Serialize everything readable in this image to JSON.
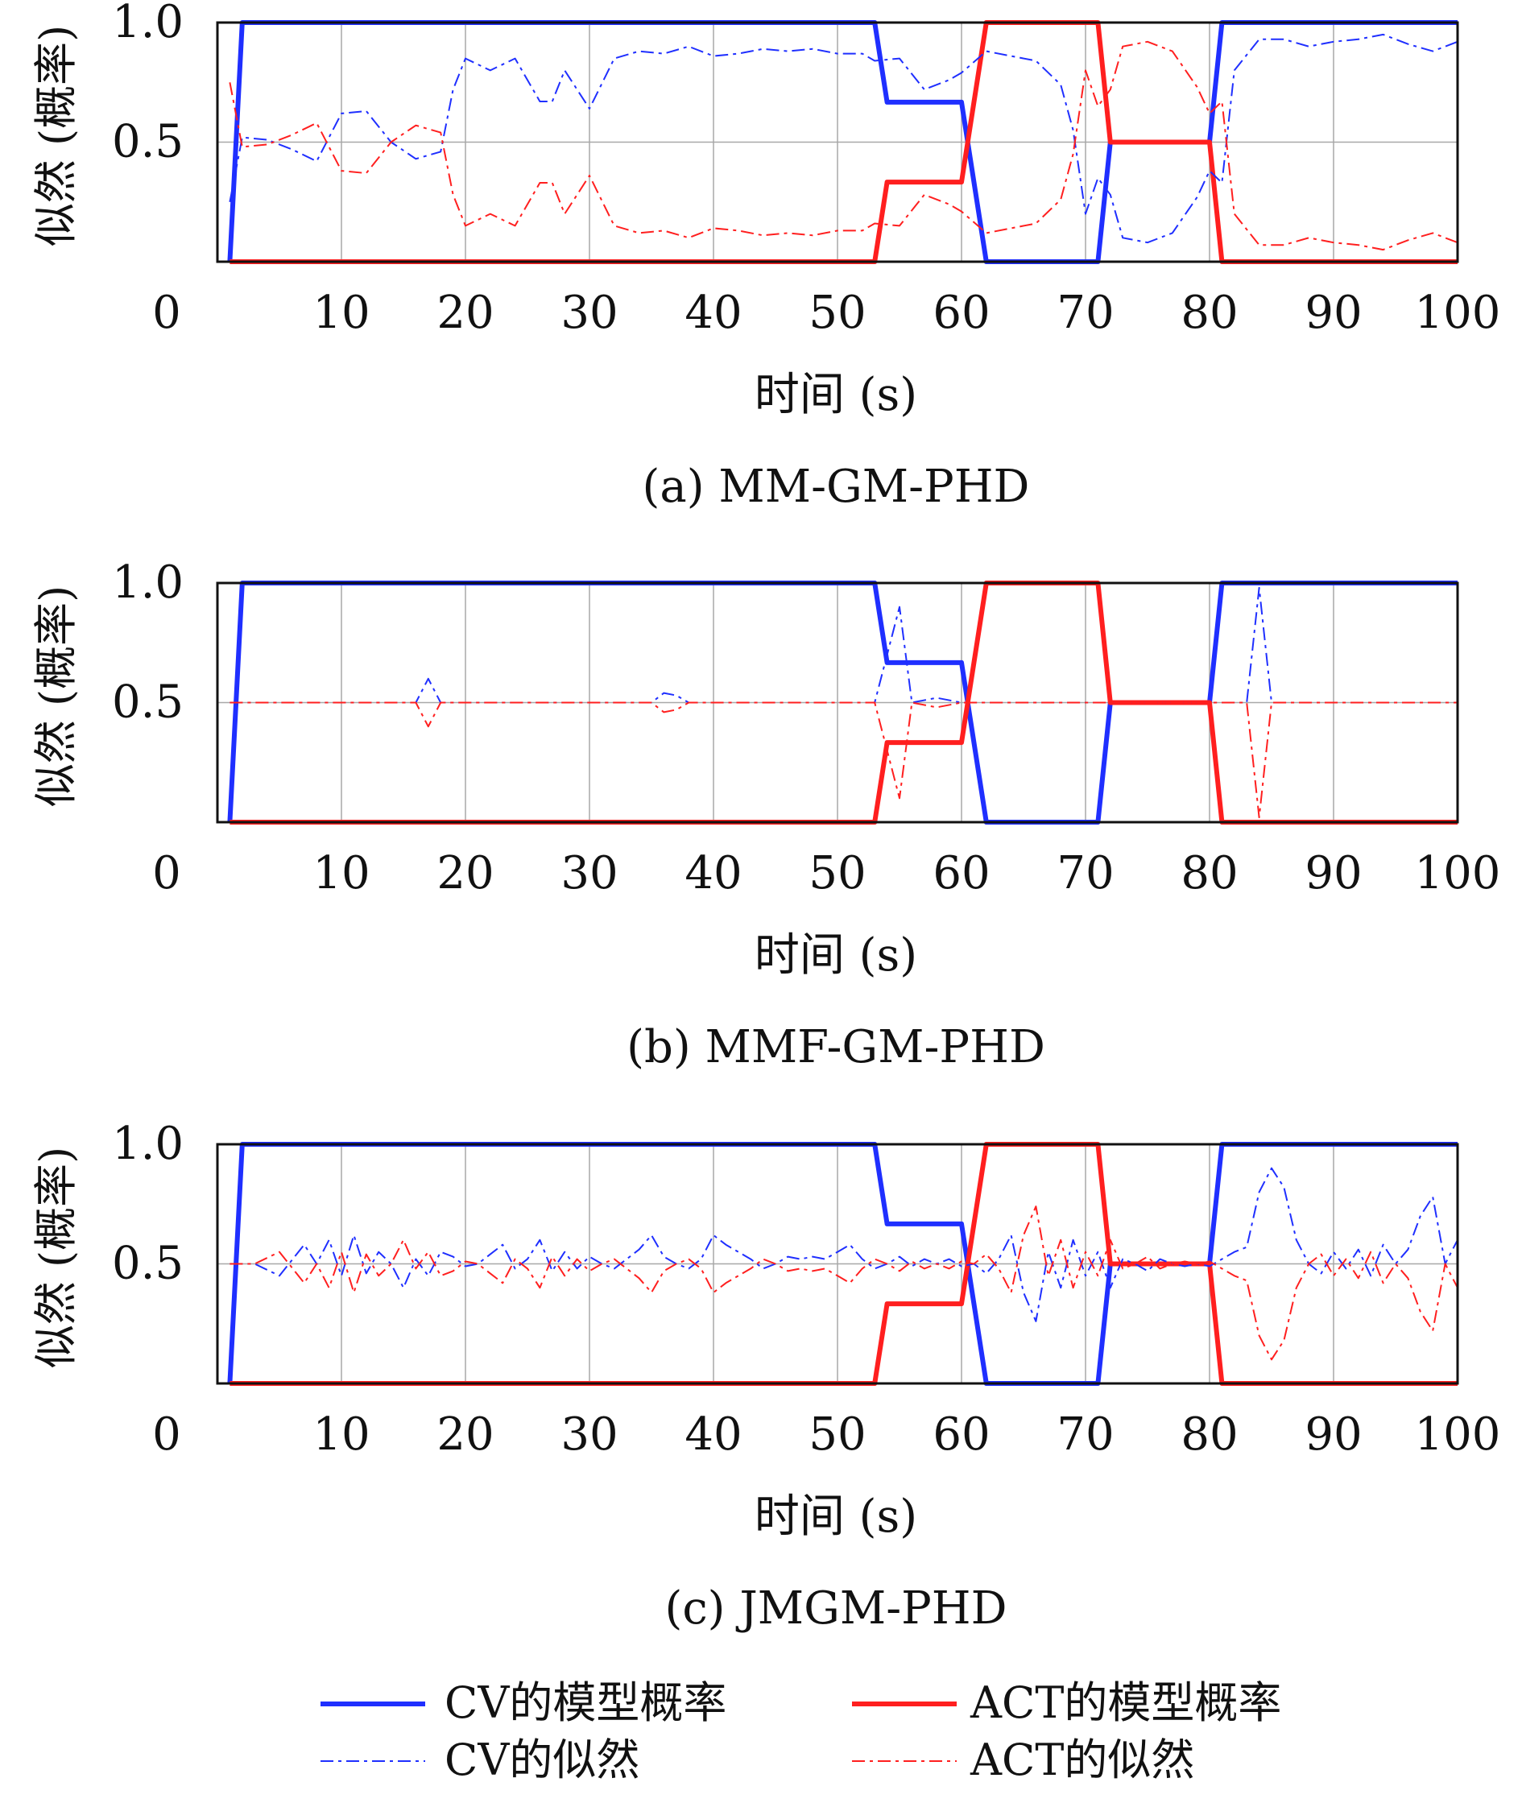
{
  "figure": {
    "legend": {
      "items": [
        {
          "label": "CV的模型概率",
          "color": "#1f2fff",
          "style": "solid"
        },
        {
          "label": "ACT的模型概率",
          "color": "#ff1f1f",
          "style": "solid"
        },
        {
          "label": "CV的似然",
          "color": "#1f2fff",
          "style": "dashdot"
        },
        {
          "label": "ACT的似然",
          "color": "#ff1f1f",
          "style": "dashdot"
        }
      ]
    }
  },
  "chart_data": [
    {
      "type": "line",
      "caption": "(a) MM-GM-PHD",
      "xlabel": "时间 (s)",
      "ylabel": "似然 (概率)",
      "xlim": [
        0,
        100
      ],
      "ylim": [
        0,
        1
      ],
      "xticks": [
        0,
        10,
        20,
        30,
        40,
        50,
        60,
        70,
        80,
        90,
        100
      ],
      "yticks": [
        {
          "v": 0.5,
          "label": "0.5"
        },
        {
          "v": 1.0,
          "label": "1.0"
        }
      ],
      "grid": true,
      "series": [
        {
          "name": "CV的模型概率",
          "color": "#1f2fff",
          "style": "solid",
          "x": [
            1,
            2,
            53,
            54,
            60,
            62,
            71,
            72,
            80,
            81,
            100
          ],
          "y": [
            0,
            1,
            1,
            0.667,
            0.667,
            0,
            0,
            0.5,
            0.5,
            1,
            1
          ]
        },
        {
          "name": "ACT的模型概率",
          "color": "#ff1f1f",
          "style": "solid",
          "x": [
            1,
            53,
            54,
            60,
            62,
            71,
            72,
            80,
            81,
            100
          ],
          "y": [
            0,
            0,
            0.333,
            0.333,
            1,
            1,
            0.5,
            0.5,
            0,
            0
          ]
        },
        {
          "name": "CV的似然",
          "color": "#1f2fff",
          "style": "dashdot",
          "x": [
            1,
            2,
            4,
            6,
            8,
            10,
            12,
            14,
            16,
            18,
            19,
            20,
            22,
            24,
            26,
            27,
            28,
            30,
            32,
            34,
            36,
            38,
            40,
            42,
            44,
            46,
            48,
            50,
            52,
            53,
            55,
            57,
            59,
            60,
            62,
            64,
            66,
            68,
            69,
            70,
            71,
            72,
            73,
            75,
            77,
            79,
            80,
            81,
            82,
            84,
            86,
            88,
            90,
            92,
            94,
            96,
            98,
            100
          ],
          "y": [
            0.25,
            0.52,
            0.51,
            0.47,
            0.42,
            0.62,
            0.63,
            0.5,
            0.43,
            0.46,
            0.72,
            0.85,
            0.8,
            0.85,
            0.67,
            0.67,
            0.8,
            0.64,
            0.85,
            0.88,
            0.87,
            0.9,
            0.86,
            0.87,
            0.89,
            0.88,
            0.89,
            0.87,
            0.87,
            0.84,
            0.85,
            0.72,
            0.76,
            0.79,
            0.88,
            0.86,
            0.84,
            0.74,
            0.55,
            0.2,
            0.35,
            0.28,
            0.1,
            0.08,
            0.12,
            0.27,
            0.38,
            0.33,
            0.8,
            0.93,
            0.93,
            0.9,
            0.92,
            0.93,
            0.95,
            0.91,
            0.88,
            0.92
          ]
        },
        {
          "name": "ACT的似然",
          "color": "#ff1f1f",
          "style": "dashdot",
          "x": [
            1,
            2,
            4,
            6,
            8,
            10,
            12,
            14,
            16,
            18,
            19,
            20,
            22,
            24,
            26,
            27,
            28,
            30,
            32,
            34,
            36,
            38,
            40,
            42,
            44,
            46,
            48,
            50,
            52,
            53,
            55,
            57,
            59,
            60,
            62,
            64,
            66,
            68,
            69,
            70,
            71,
            72,
            73,
            75,
            77,
            79,
            80,
            81,
            82,
            84,
            86,
            88,
            90,
            92,
            94,
            96,
            98,
            100
          ],
          "y": [
            0.75,
            0.48,
            0.49,
            0.53,
            0.58,
            0.38,
            0.37,
            0.5,
            0.57,
            0.54,
            0.28,
            0.15,
            0.2,
            0.15,
            0.33,
            0.33,
            0.2,
            0.36,
            0.15,
            0.12,
            0.13,
            0.1,
            0.14,
            0.13,
            0.11,
            0.12,
            0.11,
            0.13,
            0.13,
            0.16,
            0.15,
            0.28,
            0.24,
            0.21,
            0.12,
            0.14,
            0.16,
            0.26,
            0.45,
            0.8,
            0.65,
            0.72,
            0.9,
            0.92,
            0.88,
            0.73,
            0.62,
            0.67,
            0.2,
            0.07,
            0.07,
            0.1,
            0.08,
            0.07,
            0.05,
            0.09,
            0.12,
            0.08
          ]
        }
      ]
    },
    {
      "type": "line",
      "caption": "(b) MMF-GM-PHD",
      "xlabel": "时间 (s)",
      "ylabel": "似然 (概率)",
      "xlim": [
        0,
        100
      ],
      "ylim": [
        0,
        1
      ],
      "xticks": [
        0,
        10,
        20,
        30,
        40,
        50,
        60,
        70,
        80,
        90,
        100
      ],
      "yticks": [
        {
          "v": 0.5,
          "label": "0.5"
        },
        {
          "v": 1.0,
          "label": "1.0"
        }
      ],
      "grid": true,
      "series": [
        {
          "name": "CV的模型概率",
          "color": "#1f2fff",
          "style": "solid",
          "x": [
            1,
            2,
            53,
            54,
            60,
            62,
            71,
            72,
            80,
            81,
            100
          ],
          "y": [
            0,
            1,
            1,
            0.667,
            0.667,
            0,
            0,
            0.5,
            0.5,
            1,
            1
          ]
        },
        {
          "name": "ACT的模型概率",
          "color": "#ff1f1f",
          "style": "solid",
          "x": [
            1,
            53,
            54,
            60,
            62,
            71,
            72,
            80,
            81,
            100
          ],
          "y": [
            0,
            0,
            0.333,
            0.333,
            1,
            1,
            0.5,
            0.5,
            0,
            0
          ]
        },
        {
          "name": "CV的似然",
          "color": "#1f2fff",
          "style": "dashdot",
          "x": [
            1,
            10,
            15,
            16,
            17,
            18,
            26,
            35,
            36,
            37,
            38,
            50,
            53,
            54,
            55,
            56,
            58,
            60,
            70,
            82,
            83,
            84,
            85,
            100
          ],
          "y": [
            0.5,
            0.5,
            0.5,
            0.5,
            0.6,
            0.5,
            0.5,
            0.5,
            0.54,
            0.53,
            0.5,
            0.5,
            0.5,
            0.7,
            0.9,
            0.5,
            0.52,
            0.5,
            0.5,
            0.5,
            0.5,
            0.98,
            0.5,
            0.5
          ]
        },
        {
          "name": "ACT的似然",
          "color": "#ff1f1f",
          "style": "dashdot",
          "x": [
            1,
            10,
            15,
            16,
            17,
            18,
            26,
            35,
            36,
            37,
            38,
            50,
            53,
            54,
            55,
            56,
            58,
            60,
            70,
            82,
            83,
            84,
            85,
            100
          ],
          "y": [
            0.5,
            0.5,
            0.5,
            0.5,
            0.4,
            0.5,
            0.5,
            0.5,
            0.46,
            0.47,
            0.5,
            0.5,
            0.5,
            0.3,
            0.1,
            0.5,
            0.48,
            0.5,
            0.5,
            0.5,
            0.5,
            0.02,
            0.5,
            0.5
          ]
        }
      ]
    },
    {
      "type": "line",
      "caption": "(c) JMGM-PHD",
      "xlabel": "时间 (s)",
      "ylabel": "似然 (概率)",
      "xlim": [
        0,
        100
      ],
      "ylim": [
        0,
        1
      ],
      "xticks": [
        0,
        10,
        20,
        30,
        40,
        50,
        60,
        70,
        80,
        90,
        100
      ],
      "yticks": [
        {
          "v": 0.5,
          "label": "0.5"
        },
        {
          "v": 1.0,
          "label": "1.0"
        }
      ],
      "grid": true,
      "series": [
        {
          "name": "CV的模型概率",
          "color": "#1f2fff",
          "style": "solid",
          "x": [
            1,
            2,
            53,
            54,
            60,
            62,
            71,
            72,
            80,
            81,
            100
          ],
          "y": [
            0,
            1,
            1,
            0.667,
            0.667,
            0,
            0,
            0.5,
            0.5,
            1,
            1
          ]
        },
        {
          "name": "ACT的模型概率",
          "color": "#ff1f1f",
          "style": "solid",
          "x": [
            1,
            53,
            54,
            60,
            62,
            71,
            72,
            80,
            81,
            100
          ],
          "y": [
            0,
            0,
            0.333,
            0.333,
            1,
            1,
            0.5,
            0.5,
            0,
            0
          ]
        },
        {
          "name": "CV的似然",
          "color": "#1f2fff",
          "style": "dashdot",
          "x": [
            1,
            3,
            5,
            7,
            8,
            9,
            10,
            11,
            12,
            13,
            14,
            15,
            16,
            17,
            18,
            19,
            20,
            21,
            22,
            23,
            24,
            25,
            26,
            27,
            28,
            29,
            30,
            31,
            32,
            33,
            34,
            35,
            36,
            37,
            38,
            39,
            40,
            41,
            42,
            43,
            44,
            45,
            46,
            47,
            48,
            49,
            50,
            51,
            52,
            53,
            54,
            55,
            56,
            57,
            58,
            59,
            60,
            61,
            62,
            63,
            64,
            65,
            66,
            67,
            68,
            69,
            70,
            71,
            72,
            73,
            74,
            75,
            76,
            77,
            78,
            79,
            80,
            81,
            82,
            83,
            84,
            85,
            86,
            87,
            88,
            89,
            90,
            91,
            92,
            93,
            94,
            95,
            96,
            97,
            98,
            99,
            100
          ],
          "y": [
            0.5,
            0.5,
            0.45,
            0.58,
            0.5,
            0.6,
            0.45,
            0.62,
            0.46,
            0.55,
            0.5,
            0.4,
            0.52,
            0.45,
            0.55,
            0.53,
            0.49,
            0.5,
            0.54,
            0.58,
            0.48,
            0.52,
            0.6,
            0.47,
            0.55,
            0.48,
            0.53,
            0.5,
            0.48,
            0.52,
            0.56,
            0.62,
            0.53,
            0.5,
            0.48,
            0.52,
            0.62,
            0.58,
            0.55,
            0.52,
            0.48,
            0.5,
            0.53,
            0.52,
            0.53,
            0.52,
            0.55,
            0.58,
            0.52,
            0.48,
            0.5,
            0.53,
            0.49,
            0.52,
            0.5,
            0.52,
            0.49,
            0.5,
            0.46,
            0.52,
            0.62,
            0.38,
            0.26,
            0.55,
            0.4,
            0.6,
            0.45,
            0.55,
            0.4,
            0.52,
            0.5,
            0.47,
            0.52,
            0.5,
            0.49,
            0.5,
            0.49,
            0.52,
            0.55,
            0.57,
            0.8,
            0.9,
            0.82,
            0.6,
            0.5,
            0.46,
            0.55,
            0.48,
            0.56,
            0.45,
            0.58,
            0.5,
            0.56,
            0.7,
            0.78,
            0.5,
            0.6
          ]
        },
        {
          "name": "ACT的似然",
          "color": "#ff1f1f",
          "style": "dashdot",
          "x": [
            1,
            3,
            5,
            7,
            8,
            9,
            10,
            11,
            12,
            13,
            14,
            15,
            16,
            17,
            18,
            19,
            20,
            21,
            22,
            23,
            24,
            25,
            26,
            27,
            28,
            29,
            30,
            31,
            32,
            33,
            34,
            35,
            36,
            37,
            38,
            39,
            40,
            41,
            42,
            43,
            44,
            45,
            46,
            47,
            48,
            49,
            50,
            51,
            52,
            53,
            54,
            55,
            56,
            57,
            58,
            59,
            60,
            61,
            62,
            63,
            64,
            65,
            66,
            67,
            68,
            69,
            70,
            71,
            72,
            73,
            74,
            75,
            76,
            77,
            78,
            79,
            80,
            81,
            82,
            83,
            84,
            85,
            86,
            87,
            88,
            89,
            90,
            91,
            92,
            93,
            94,
            95,
            96,
            97,
            98,
            99,
            100
          ],
          "y": [
            0.5,
            0.5,
            0.55,
            0.42,
            0.5,
            0.4,
            0.55,
            0.38,
            0.54,
            0.45,
            0.5,
            0.6,
            0.48,
            0.55,
            0.45,
            0.47,
            0.51,
            0.5,
            0.46,
            0.42,
            0.52,
            0.48,
            0.4,
            0.53,
            0.45,
            0.52,
            0.47,
            0.5,
            0.52,
            0.48,
            0.44,
            0.38,
            0.47,
            0.5,
            0.52,
            0.48,
            0.38,
            0.42,
            0.45,
            0.48,
            0.52,
            0.5,
            0.47,
            0.48,
            0.47,
            0.48,
            0.45,
            0.42,
            0.48,
            0.52,
            0.5,
            0.47,
            0.51,
            0.48,
            0.5,
            0.48,
            0.51,
            0.5,
            0.54,
            0.48,
            0.38,
            0.62,
            0.74,
            0.45,
            0.6,
            0.4,
            0.55,
            0.45,
            0.6,
            0.48,
            0.5,
            0.53,
            0.48,
            0.5,
            0.51,
            0.5,
            0.51,
            0.48,
            0.45,
            0.43,
            0.2,
            0.1,
            0.18,
            0.4,
            0.5,
            0.54,
            0.45,
            0.52,
            0.44,
            0.55,
            0.42,
            0.5,
            0.44,
            0.3,
            0.22,
            0.5,
            0.4
          ]
        }
      ]
    }
  ]
}
